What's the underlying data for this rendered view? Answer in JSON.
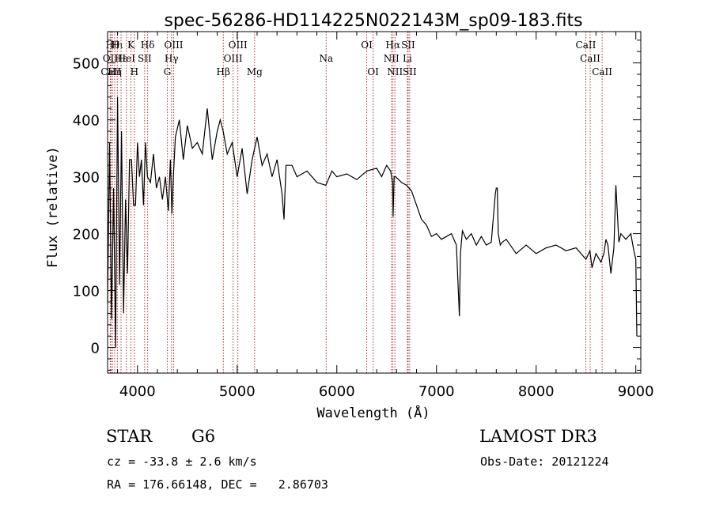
{
  "chart_data": {
    "type": "line",
    "title": "spec-56286-HD114225N022143M_sp09-183.fits",
    "xlabel": "Wavelength (Å)",
    "ylabel": "Flux (relative)",
    "xlim": [
      3700,
      9050
    ],
    "ylim": [
      -45,
      555
    ],
    "xticks": [
      4000,
      5000,
      6000,
      7000,
      8000,
      9000
    ],
    "yticks": [
      0,
      100,
      200,
      300,
      400,
      500
    ],
    "series": [
      {
        "name": "flux",
        "x": [
          3700,
          3720,
          3740,
          3760,
          3780,
          3800,
          3820,
          3840,
          3860,
          3880,
          3900,
          3920,
          3940,
          3960,
          3980,
          4000,
          4020,
          4040,
          4060,
          4080,
          4100,
          4130,
          4160,
          4190,
          4220,
          4250,
          4280,
          4310,
          4330,
          4345,
          4360,
          4380,
          4420,
          4460,
          4500,
          4550,
          4600,
          4650,
          4700,
          4750,
          4800,
          4830,
          4860,
          4900,
          4950,
          5000,
          5050,
          5100,
          5150,
          5200,
          5250,
          5300,
          5350,
          5400,
          5450,
          5470,
          5490,
          5550,
          5600,
          5700,
          5800,
          5890,
          5950,
          6000,
          6100,
          6200,
          6300,
          6400,
          6450,
          6500,
          6540,
          6560,
          6565,
          6575,
          6590,
          6650,
          6700,
          6750,
          6800,
          6850,
          6900,
          6950,
          7000,
          7050,
          7100,
          7150,
          7200,
          7230,
          7240,
          7260,
          7300,
          7350,
          7400,
          7450,
          7500,
          7550,
          7590,
          7600,
          7610,
          7620,
          7640,
          7660,
          7700,
          7800,
          7900,
          8000,
          8100,
          8200,
          8300,
          8400,
          8500,
          8540,
          8560,
          8600,
          8650,
          8680,
          8700,
          8720,
          8750,
          8780,
          8800,
          8830,
          8850,
          8900,
          8950,
          8980,
          9000,
          9010
        ],
        "values": [
          80,
          360,
          50,
          280,
          0,
          440,
          110,
          380,
          60,
          260,
          130,
          330,
          330,
          250,
          250,
          360,
          300,
          330,
          250,
          360,
          300,
          290,
          340,
          280,
          300,
          260,
          300,
          240,
          330,
          235,
          300,
          370,
          400,
          330,
          390,
          350,
          360,
          340,
          420,
          330,
          380,
          400,
          380,
          340,
          360,
          300,
          350,
          270,
          330,
          370,
          320,
          340,
          300,
          330,
          270,
          225,
          320,
          320,
          300,
          310,
          290,
          285,
          310,
          300,
          305,
          295,
          310,
          315,
          300,
          320,
          310,
          290,
          230,
          300,
          300,
          290,
          285,
          275,
          250,
          225,
          215,
          195,
          200,
          190,
          195,
          200,
          180,
          55,
          165,
          205,
          190,
          200,
          180,
          195,
          180,
          185,
          270,
          280,
          280,
          200,
          180,
          185,
          190,
          165,
          180,
          165,
          175,
          180,
          170,
          175,
          155,
          170,
          140,
          165,
          150,
          165,
          190,
          180,
          130,
          175,
          285,
          185,
          200,
          190,
          200,
          170,
          155,
          20
        ]
      }
    ],
    "line_markers": [
      {
        "wavelength": 3727,
        "label": "OII",
        "row": 1
      },
      {
        "wavelength": 3734,
        "label": "CaII",
        "row": 2
      },
      {
        "wavelength": 3750,
        "label": "Hθ",
        "row": 0
      },
      {
        "wavelength": 3771,
        "label": "Hη",
        "row": 2
      },
      {
        "wavelength": 3798,
        "label": "Hι",
        "row": 0
      },
      {
        "wavelength": 3835,
        "label": "Hε",
        "row": 1
      },
      {
        "wavelength": 3889,
        "label": "HeI",
        "row": 1
      },
      {
        "wavelength": 3934,
        "label": "K",
        "row": 0
      },
      {
        "wavelength": 3969,
        "label": "H",
        "row": 2
      },
      {
        "wavelength": 4072,
        "label": "SII",
        "row": 1
      },
      {
        "wavelength": 4102,
        "label": "Hδ",
        "row": 0
      },
      {
        "wavelength": 4300,
        "label": "G",
        "row": 2
      },
      {
        "wavelength": 4341,
        "label": "Hγ",
        "row": 1
      },
      {
        "wavelength": 4363,
        "label": "OIII",
        "row": 0
      },
      {
        "wavelength": 4861,
        "label": "Hβ",
        "row": 2
      },
      {
        "wavelength": 4959,
        "label": "OIII",
        "row": 1
      },
      {
        "wavelength": 5007,
        "label": "OIII",
        "row": 0
      },
      {
        "wavelength": 5175,
        "label": "Mg",
        "row": 2
      },
      {
        "wavelength": 5893,
        "label": "Na",
        "row": 1
      },
      {
        "wavelength": 6300,
        "label": "OI",
        "row": 0
      },
      {
        "wavelength": 6364,
        "label": "OI",
        "row": 2
      },
      {
        "wavelength": 6548,
        "label": "NII",
        "row": 1
      },
      {
        "wavelength": 6563,
        "label": "Hα",
        "row": 0
      },
      {
        "wavelength": 6583,
        "label": "NII",
        "row": 2
      },
      {
        "wavelength": 6708,
        "label": "Li",
        "row": 1
      },
      {
        "wavelength": 6716,
        "label": "SII",
        "row": 0
      },
      {
        "wavelength": 6731,
        "label": "SII",
        "row": 2
      },
      {
        "wavelength": 8498,
        "label": "CaII",
        "row": 0
      },
      {
        "wavelength": 8542,
        "label": "CaII",
        "row": 1
      },
      {
        "wavelength": 8662,
        "label": "CaII",
        "row": 2
      }
    ]
  },
  "info": {
    "class_label": "STAR",
    "subclass_label": "G6",
    "survey_label": "LAMOST DR3",
    "cz_text": "cz = -33.8 ± 2.6 km/s",
    "obsdate_text": "Obs-Date: 20121224",
    "radec_text": "RA = 176.66148, DEC =   2.86703"
  },
  "colors": {
    "line_marker": "#b03030",
    "spectrum": "#000000",
    "axes": "#000000"
  }
}
